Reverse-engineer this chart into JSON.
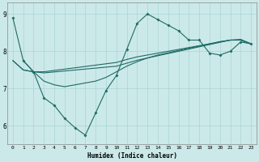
{
  "xlabel": "Humidex (Indice chaleur)",
  "background_color": "#cce9e9",
  "grid_color": "#aad4d4",
  "line_color": "#1e6b65",
  "xlim": [
    -0.5,
    23.5
  ],
  "ylim": [
    5.5,
    9.3
  ],
  "yticks": [
    6,
    7,
    8,
    9
  ],
  "xticks": [
    0,
    1,
    2,
    3,
    4,
    5,
    6,
    7,
    8,
    9,
    10,
    11,
    12,
    13,
    14,
    15,
    16,
    17,
    18,
    19,
    20,
    21,
    22,
    23
  ],
  "zigzag_x": [
    0,
    1,
    2,
    3,
    4,
    5,
    6,
    7,
    8,
    9,
    10,
    11,
    12,
    13,
    14,
    15,
    16,
    17,
    18,
    19,
    20,
    21,
    22,
    23
  ],
  "zigzag_y": [
    8.9,
    7.75,
    7.45,
    6.75,
    6.55,
    6.2,
    5.95,
    5.75,
    6.35,
    6.95,
    7.35,
    8.05,
    8.75,
    9.0,
    8.85,
    8.7,
    8.55,
    8.3,
    8.3,
    7.95,
    7.9,
    8.0,
    8.25,
    8.2
  ],
  "smooth1_x": [
    0,
    1,
    2,
    3,
    10,
    11,
    12,
    13,
    14,
    15,
    16,
    17,
    18,
    19,
    20,
    21,
    22,
    23
  ],
  "smooth1_y": [
    7.75,
    7.5,
    7.45,
    7.45,
    7.7,
    7.78,
    7.85,
    7.9,
    7.95,
    8.0,
    8.05,
    8.1,
    8.15,
    8.2,
    8.25,
    8.3,
    8.3,
    8.2
  ],
  "smooth2_x": [
    0,
    1,
    2,
    3,
    10,
    11,
    12,
    13,
    14,
    15,
    16,
    17,
    18,
    19,
    20,
    21,
    22,
    23
  ],
  "smooth2_y": [
    7.75,
    7.5,
    7.45,
    7.42,
    7.6,
    7.68,
    7.76,
    7.82,
    7.88,
    7.94,
    8.0,
    8.06,
    8.12,
    8.18,
    8.24,
    8.3,
    8.3,
    8.2
  ],
  "smooth3_x": [
    1,
    2,
    3,
    4,
    5,
    6,
    7,
    8,
    9,
    10,
    11,
    12,
    13,
    14,
    15,
    16,
    17,
    18,
    19,
    20,
    21,
    22,
    23
  ],
  "smooth3_y": [
    7.75,
    7.45,
    7.2,
    7.1,
    7.05,
    7.1,
    7.15,
    7.2,
    7.3,
    7.45,
    7.6,
    7.72,
    7.82,
    7.9,
    7.96,
    8.02,
    8.08,
    8.14,
    8.2,
    8.26,
    8.3,
    8.32,
    8.2
  ]
}
